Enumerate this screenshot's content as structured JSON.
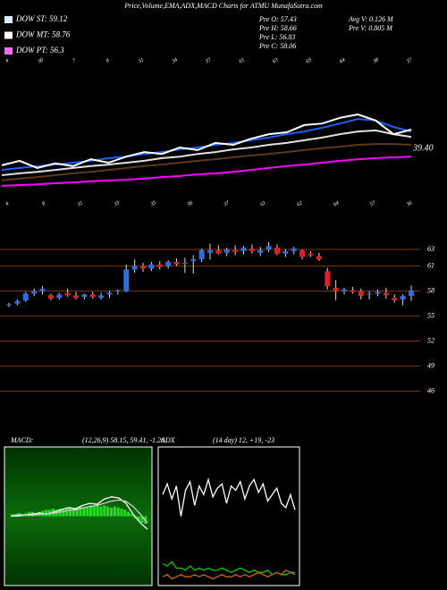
{
  "header": {
    "title": "Price,Volume,EMA,ADX,MACD Charts for ATMU MunafaSutra.com",
    "legend": [
      {
        "label": "DOW ST: 59.12",
        "color": "#dfe6ff"
      },
      {
        "label": "DOW MT: 58.76",
        "color": "#ffffff"
      },
      {
        "label": "DOW PT: 56.3",
        "color": "#ff66ff"
      }
    ],
    "info": [
      "Pre O: 57.43",
      "Pre H: 58.66",
      "Pre L: 56.83",
      "Pre C: 58.06",
      "Avg V: 0.126 M",
      "Pre V: 0.805 M"
    ]
  },
  "chart_data": [
    {
      "type": "line",
      "annotation": "39.40",
      "x_labels": [
        "4",
        "30",
        "7",
        "8",
        "31",
        "34",
        "37",
        "61",
        "63",
        "65",
        "64",
        "38",
        "37"
      ],
      "ylim": [
        30,
        70
      ],
      "series": [
        {
          "color": "#5a3a1a",
          "values": [
            36.6,
            37.1,
            37.5,
            38.0,
            38.5,
            38.9,
            39.4,
            39.9,
            40.4,
            40.8,
            41.3,
            41.8,
            42.2,
            42.7,
            43.2,
            43.6,
            44.1,
            44.6,
            45.1,
            45.5,
            46.0,
            46.2,
            46.2,
            46.0
          ]
        },
        {
          "color": "#e0e0e0",
          "values": [
            38.0,
            38.5,
            38.9,
            39.4,
            39.9,
            40.4,
            40.8,
            41.3,
            41.8,
            42.5,
            42.9,
            43.6,
            44.1,
            44.8,
            45.3,
            46.0,
            46.5,
            47.2,
            47.9,
            48.8,
            49.5,
            49.8,
            48.8,
            48.1
          ]
        },
        {
          "color": "#ff00ff",
          "values": [
            35.2,
            35.4,
            35.6,
            35.9,
            36.1,
            36.4,
            36.6,
            36.8,
            37.1,
            37.5,
            37.8,
            38.2,
            38.5,
            38.9,
            39.4,
            39.9,
            40.4,
            40.8,
            41.3,
            41.8,
            42.2,
            42.5,
            42.7,
            42.9
          ]
        },
        {
          "color": "#1e5eff",
          "values": [
            39.4,
            39.9,
            40.4,
            40.8,
            41.3,
            41.8,
            42.5,
            42.9,
            43.6,
            44.1,
            44.8,
            45.3,
            46.0,
            46.5,
            47.2,
            47.9,
            48.8,
            49.5,
            50.5,
            51.6,
            52.8,
            52.4,
            50.7,
            49.5
          ]
        },
        {
          "color": "#ffffff",
          "values": [
            40.6,
            41.8,
            39.9,
            41.1,
            40.4,
            42.2,
            41.3,
            42.9,
            44.1,
            43.6,
            45.3,
            44.6,
            46.5,
            46.0,
            47.6,
            48.8,
            49.3,
            51.2,
            51.6,
            53.1,
            54.0,
            52.4,
            48.8,
            50.0
          ]
        }
      ]
    },
    {
      "type": "candlestick",
      "x_labels": [
        "4",
        "8",
        "31",
        "33",
        "35",
        "36",
        "37",
        "61",
        "62",
        "64",
        "57",
        "36"
      ],
      "ylim": [
        45,
        66
      ],
      "yticks": [
        63,
        61,
        58,
        55,
        52,
        49,
        46
      ],
      "grid": true,
      "up_color": "#2a6fe0",
      "down_color": "#e02020",
      "open": [
        56.3,
        56.5,
        56.9,
        57.7,
        58.0,
        57.5,
        57.2,
        57.8,
        57.5,
        57.3,
        57.6,
        57.2,
        57.6,
        58.0,
        58.0,
        60.6,
        61.0,
        60.7,
        61.2,
        61.0,
        61.5,
        61.3,
        61.6,
        61.8,
        62.6,
        62.9,
        62.6,
        62.9,
        62.8,
        63.1,
        62.6,
        63.0,
        63.2,
        62.5,
        62.8,
        62.9,
        62.5,
        62.2,
        60.4,
        58.4,
        58.0,
        58.1,
        58.0,
        57.6,
        57.7,
        57.8,
        57.2,
        57.0,
        57.43
      ],
      "high": [
        56.6,
        57.0,
        57.9,
        58.3,
        58.6,
        57.7,
        57.8,
        58.3,
        57.9,
        57.7,
        57.9,
        57.8,
        58.0,
        58.2,
        61.2,
        61.8,
        61.4,
        61.5,
        61.6,
        61.7,
        61.9,
        62.0,
        62.3,
        63.1,
        63.7,
        63.5,
        63.2,
        63.5,
        63.4,
        63.6,
        63.3,
        63.9,
        63.6,
        63.0,
        63.3,
        63.0,
        62.8,
        62.6,
        60.8,
        59.3,
        58.4,
        58.5,
        58.3,
        58.0,
        58.2,
        58.4,
        57.6,
        57.6,
        58.66
      ],
      "low": [
        56.1,
        56.3,
        56.7,
        57.4,
        57.6,
        56.9,
        57.0,
        57.3,
        57.0,
        57.0,
        57.1,
        57.0,
        57.2,
        57.6,
        57.9,
        60.2,
        60.3,
        60.4,
        60.6,
        60.7,
        61.0,
        60.2,
        60.1,
        61.5,
        61.8,
        62.4,
        62.2,
        62.3,
        62.4,
        62.5,
        62.2,
        62.7,
        62.3,
        62.1,
        62.4,
        61.8,
        62.1,
        61.6,
        58.2,
        56.9,
        57.6,
        57.7,
        57.0,
        57.0,
        57.4,
        57.1,
        56.6,
        56.3,
        56.83
      ],
      "close": [
        56.4,
        56.8,
        57.7,
        58.0,
        58.3,
        57.1,
        57.6,
        57.5,
        57.2,
        57.6,
        57.3,
        57.5,
        57.8,
        58.1,
        60.6,
        61.0,
        60.7,
        61.2,
        60.9,
        61.5,
        61.2,
        61.4,
        61.8,
        62.9,
        62.9,
        62.5,
        63.0,
        62.7,
        63.2,
        62.8,
        62.9,
        63.4,
        62.5,
        62.8,
        63.1,
        62.1,
        62.3,
        61.8,
        58.6,
        58.0,
        58.2,
        57.9,
        57.4,
        57.7,
        57.9,
        57.5,
        56.9,
        57.4,
        58.06
      ]
    },
    {
      "type": "macd",
      "title": "MACD:",
      "subtitle": "(12,26,9) 58.15, 59.41, -1.26",
      "ylim": [
        -3,
        3
      ],
      "histogram": [
        0.1,
        0.1,
        0.15,
        0.1,
        0.15,
        0.2,
        0.2,
        0.15,
        0.2,
        0.25,
        0.3,
        0.3,
        0.35,
        0.3,
        0.35,
        0.3,
        0.35,
        0.4,
        0.35,
        0.4,
        0.45,
        0.4,
        0.45,
        0.5,
        0.45,
        0.5,
        0.45,
        0.5,
        0.45,
        0.4,
        0.45,
        0.4,
        0.35,
        0.3,
        0.2,
        0.1,
        -0.1,
        -0.2,
        -0.3,
        -0.35
      ],
      "hist_color": "#22dd22",
      "series": [
        {
          "color": "#ffffff",
          "values": [
            0,
            0.05,
            0.05,
            0.1,
            0.15,
            0.1,
            0.2,
            0.3,
            0.4,
            0.35,
            0.5,
            0.6,
            0.55,
            0.8,
            0.9,
            0.85,
            0.6,
            0.1,
            -0.3,
            -0.6
          ]
        },
        {
          "color": "#cccccc",
          "values": [
            0,
            0,
            0.05,
            0.05,
            0.1,
            0.12,
            0.15,
            0.2,
            0.28,
            0.3,
            0.38,
            0.45,
            0.5,
            0.6,
            0.7,
            0.75,
            0.7,
            0.45,
            0.1,
            -0.3
          ]
        }
      ]
    },
    {
      "type": "line",
      "title": "ADX",
      "subtitle": "(14 day) 12, +19, -23",
      "ylim": [
        0,
        60
      ],
      "series": [
        {
          "color": "#ffffff",
          "values": [
            40,
            45,
            38,
            44,
            30,
            42,
            46,
            35,
            44,
            40,
            47,
            39,
            43,
            45,
            36,
            44,
            42,
            46,
            38,
            44,
            47,
            41,
            45,
            37,
            40,
            43,
            36,
            34,
            40,
            33
          ]
        },
        {
          "color": "#00cc00",
          "values": [
            8,
            7,
            9,
            6,
            6,
            5,
            7,
            5,
            6,
            5,
            6,
            5,
            5,
            6,
            5,
            4,
            5,
            6,
            5,
            4,
            5,
            4,
            4,
            5,
            3,
            4,
            3,
            3,
            4,
            4
          ]
        },
        {
          "color": "#cc6600",
          "values": [
            2,
            3,
            1,
            2,
            3,
            2,
            2,
            3,
            2,
            3,
            2,
            1,
            2,
            3,
            2,
            2,
            3,
            2,
            3,
            2,
            3,
            4,
            3,
            2,
            3,
            4,
            3,
            5,
            4,
            3
          ]
        }
      ]
    }
  ]
}
